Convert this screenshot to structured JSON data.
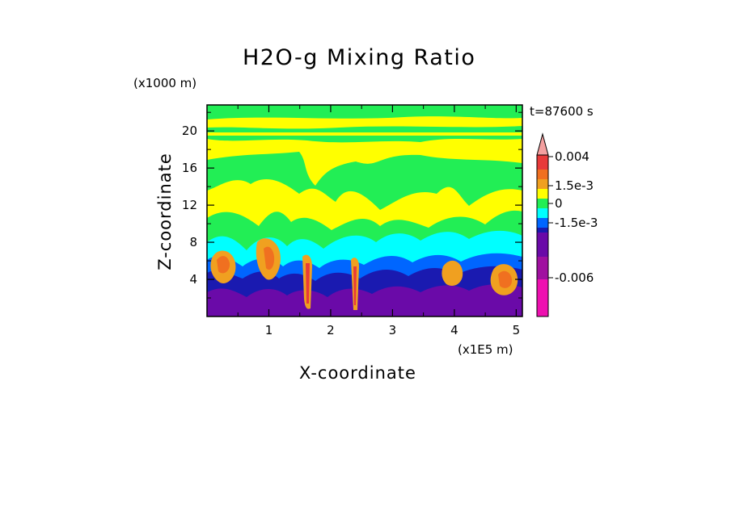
{
  "chart_data": {
    "type": "heatmap",
    "title": "H2O-g Mixing Ratio",
    "xlabel": "X-coordinate",
    "ylabel": "Z-coordinate",
    "x_unit": "(x1E5 m)",
    "y_unit": "(x1000 m)",
    "time_label": "t=87600 s",
    "xlim": [
      0,
      5.1
    ],
    "ylim": [
      0,
      22.8
    ],
    "x_ticks": [
      "1",
      "2",
      "3",
      "4",
      "5"
    ],
    "y_ticks": [
      "4",
      "8",
      "12",
      "16",
      "20"
    ],
    "colorbar": {
      "labels": [
        "0.004",
        "1.5e-3",
        "0",
        "-1.5e-3",
        "-0.006"
      ],
      "colors": [
        "#f4a0a0",
        "#e83a3a",
        "#f07020",
        "#f0a020",
        "#ffff00",
        "#22ee55",
        "#00ffff",
        "#0066ff",
        "#1a1ab0",
        "#6a0aa8",
        "#a010a0",
        "#ee10b0"
      ]
    }
  }
}
